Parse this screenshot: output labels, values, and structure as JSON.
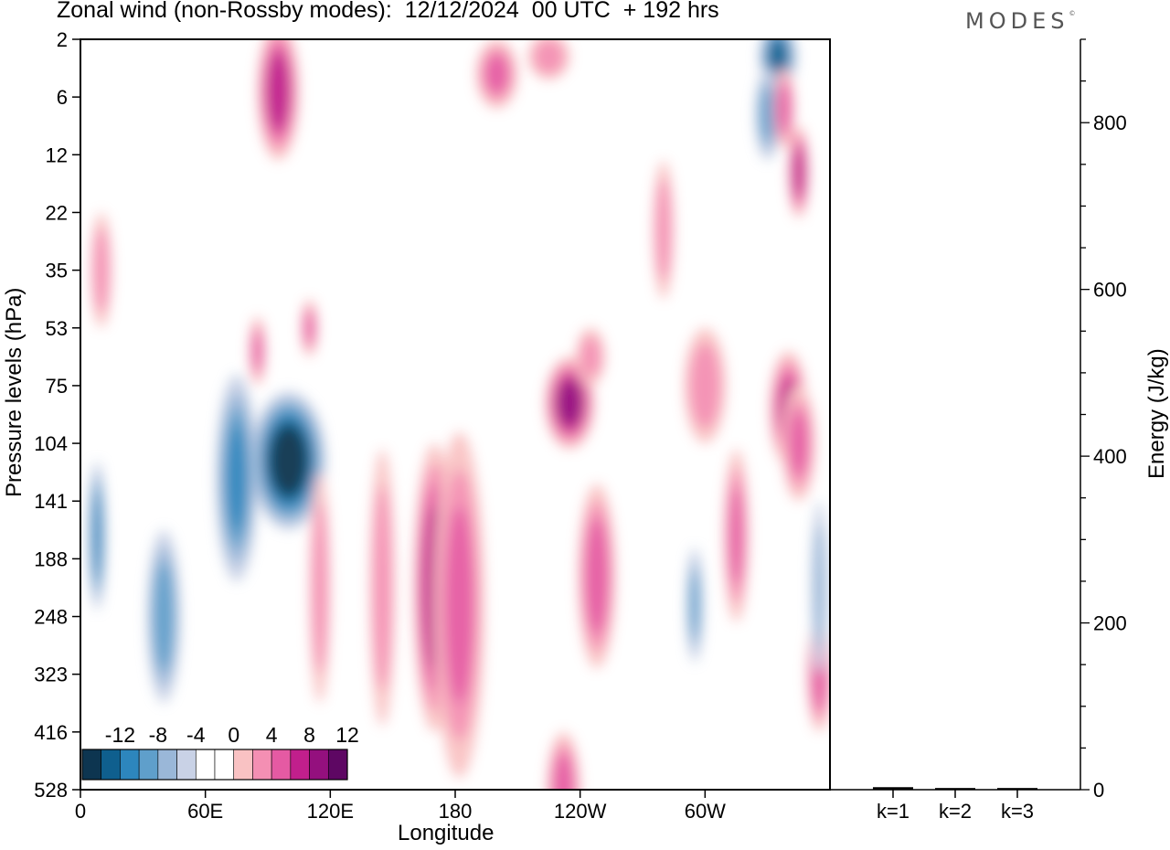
{
  "header": {
    "title": "Zonal wind (non-Rossby modes):  12/12/2024  00 UTC  + 192 hrs",
    "logo": "MODES"
  },
  "chart_data": [
    {
      "type": "heatmap",
      "title": "Zonal wind (non-Rossby modes):  12/12/2024  00 UTC  + 192 hrs",
      "xlabel": "Longitude",
      "ylabel": "Pressure levels (hPa)",
      "x_ticks": [
        "0",
        "60E",
        "120E",
        "180",
        "120W",
        "60W"
      ],
      "y_ticks": [
        "2",
        "6",
        "12",
        "22",
        "35",
        "53",
        "75",
        "104",
        "141",
        "188",
        "248",
        "323",
        "416",
        "528"
      ],
      "colorbar": {
        "labels": [
          "-12",
          "-8",
          "-4",
          "0",
          "4",
          "8",
          "12"
        ],
        "colors": [
          "#0d3550",
          "#0f5f8e",
          "#2d86bd",
          "#5f9fcb",
          "#9ab7d8",
          "#c9d2e6",
          "#ffffff",
          "#ffffff",
          "#f9c2c3",
          "#f48fb3",
          "#e55aa3",
          "#c11f8c",
          "#94107e",
          "#5e0763"
        ]
      },
      "blobs": [
        {
          "lon": 8,
          "lev": 8.6,
          "value": -9,
          "rx": 4,
          "ry": 1.3
        },
        {
          "lon": 100,
          "lev": 7.3,
          "value": -13,
          "rx": 18,
          "ry": 1.2
        },
        {
          "lon": 75,
          "lev": 7.6,
          "value": -8,
          "rx": 10,
          "ry": 1.8
        },
        {
          "lon": 40,
          "lev": 10.0,
          "value": -7,
          "rx": 8,
          "ry": 1.5
        },
        {
          "lon": 170,
          "lev": 9.5,
          "value": 9,
          "rx": 10,
          "ry": 2.5
        },
        {
          "lon": 182,
          "lev": 9.8,
          "value": 6,
          "rx": 12,
          "ry": 3.0
        },
        {
          "lon": 145,
          "lev": 9.5,
          "value": 5,
          "rx": 6,
          "ry": 2.4
        },
        {
          "lon": 115,
          "lev": 9.5,
          "value": 5,
          "rx": 5,
          "ry": 2.0
        },
        {
          "lon": 235,
          "lev": 6.3,
          "value": 10,
          "rx": 12,
          "ry": 0.8
        },
        {
          "lon": 248,
          "lev": 9.3,
          "value": 7,
          "rx": 9,
          "ry": 1.6
        },
        {
          "lon": 295,
          "lev": 9.8,
          "value": -6,
          "rx": 4,
          "ry": 1.0
        },
        {
          "lon": 315,
          "lev": 8.6,
          "value": 6,
          "rx": 6,
          "ry": 1.5
        },
        {
          "lon": 340,
          "lev": 6.4,
          "value": 8,
          "rx": 9,
          "ry": 1.0
        },
        {
          "lon": 280,
          "lev": 3.3,
          "value": 5,
          "rx": 5,
          "ry": 1.2
        },
        {
          "lon": 335,
          "lev": 0.3,
          "value": -10,
          "rx": 9,
          "ry": 0.6
        },
        {
          "lon": 330,
          "lev": 1.3,
          "value": -6,
          "rx": 6,
          "ry": 0.8
        },
        {
          "lon": 345,
          "lev": 2.3,
          "value": 9,
          "rx": 5,
          "ry": 0.8
        },
        {
          "lon": 338,
          "lev": 1.2,
          "value": 7,
          "rx": 5,
          "ry": 0.7
        },
        {
          "lon": 95,
          "lev": 0.9,
          "value": 9,
          "rx": 10,
          "ry": 1.2
        },
        {
          "lon": 200,
          "lev": 0.6,
          "value": 6,
          "rx": 10,
          "ry": 0.6
        },
        {
          "lon": 225,
          "lev": 0.3,
          "value": 5,
          "rx": 10,
          "ry": 0.4
        },
        {
          "lon": 85,
          "lev": 5.4,
          "value": 6,
          "rx": 4,
          "ry": 0.6
        },
        {
          "lon": 110,
          "lev": 5.0,
          "value": 6,
          "rx": 4,
          "ry": 0.5
        },
        {
          "lon": 355,
          "lev": 11.0,
          "value": 7,
          "rx": 6,
          "ry": 1.0
        },
        {
          "lon": 232,
          "lev": 13.0,
          "value": 7,
          "rx": 8,
          "ry": 1.0
        },
        {
          "lon": 355,
          "lev": 9.5,
          "value": -5,
          "rx": 4,
          "ry": 1.5
        },
        {
          "lon": 345,
          "lev": 7.0,
          "value": 6,
          "rx": 8,
          "ry": 1.0
        },
        {
          "lon": 300,
          "lev": 6.0,
          "value": 5,
          "rx": 10,
          "ry": 1.0
        },
        {
          "lon": 245,
          "lev": 5.5,
          "value": 4.5,
          "rx": 7,
          "ry": 0.5
        },
        {
          "lon": 10,
          "lev": 4.0,
          "value": 5,
          "rx": 5,
          "ry": 1.0
        }
      ]
    },
    {
      "type": "bar",
      "ylabel": "Energy (J/kg)",
      "categories": [
        "k=1",
        "k=2",
        "k=3"
      ],
      "values": [
        3,
        2,
        2
      ],
      "ylim": [
        0,
        900
      ],
      "y_ticks": [
        "0",
        "200",
        "400",
        "600",
        "800"
      ]
    }
  ]
}
